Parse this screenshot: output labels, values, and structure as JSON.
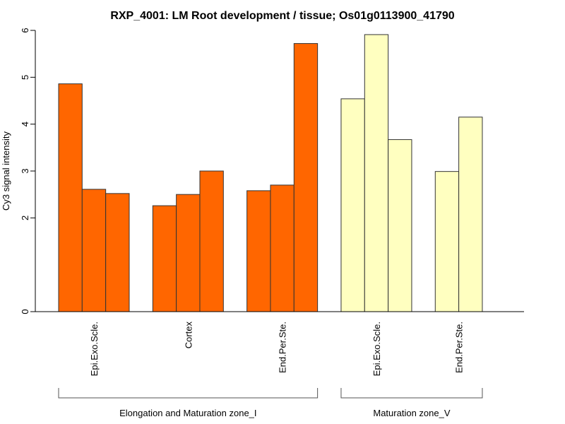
{
  "chart_data": {
    "type": "bar",
    "title": "RXP_4001: LM Root development / tissue; Os01g0113900_41790",
    "xlabel": "",
    "ylabel": "Cy3 signal intensity",
    "ylim": [
      0,
      6
    ],
    "yticks": [
      0,
      2,
      3,
      4,
      5,
      6
    ],
    "grid": false,
    "legend": "none",
    "groups": [
      {
        "name": "Elongation and Maturation zone_I",
        "color": "#ff6600",
        "categories": [
          {
            "label": "Epi.Exo.Scle.",
            "values": [
              4.86,
              2.61,
              2.52
            ]
          },
          {
            "label": "Cortex",
            "values": [
              2.26,
              2.5,
              3.0
            ]
          },
          {
            "label": "End.Per.Ste.",
            "values": [
              2.58,
              2.7,
              5.72
            ]
          }
        ]
      },
      {
        "name": "Maturation zone_V",
        "color": "#ffffc0",
        "categories": [
          {
            "label": "Epi.Exo.Scle.",
            "values": [
              4.54,
              5.91,
              3.67
            ]
          },
          {
            "label": "End.Per.Ste.",
            "values": [
              2.99,
              4.15
            ]
          }
        ]
      }
    ]
  }
}
